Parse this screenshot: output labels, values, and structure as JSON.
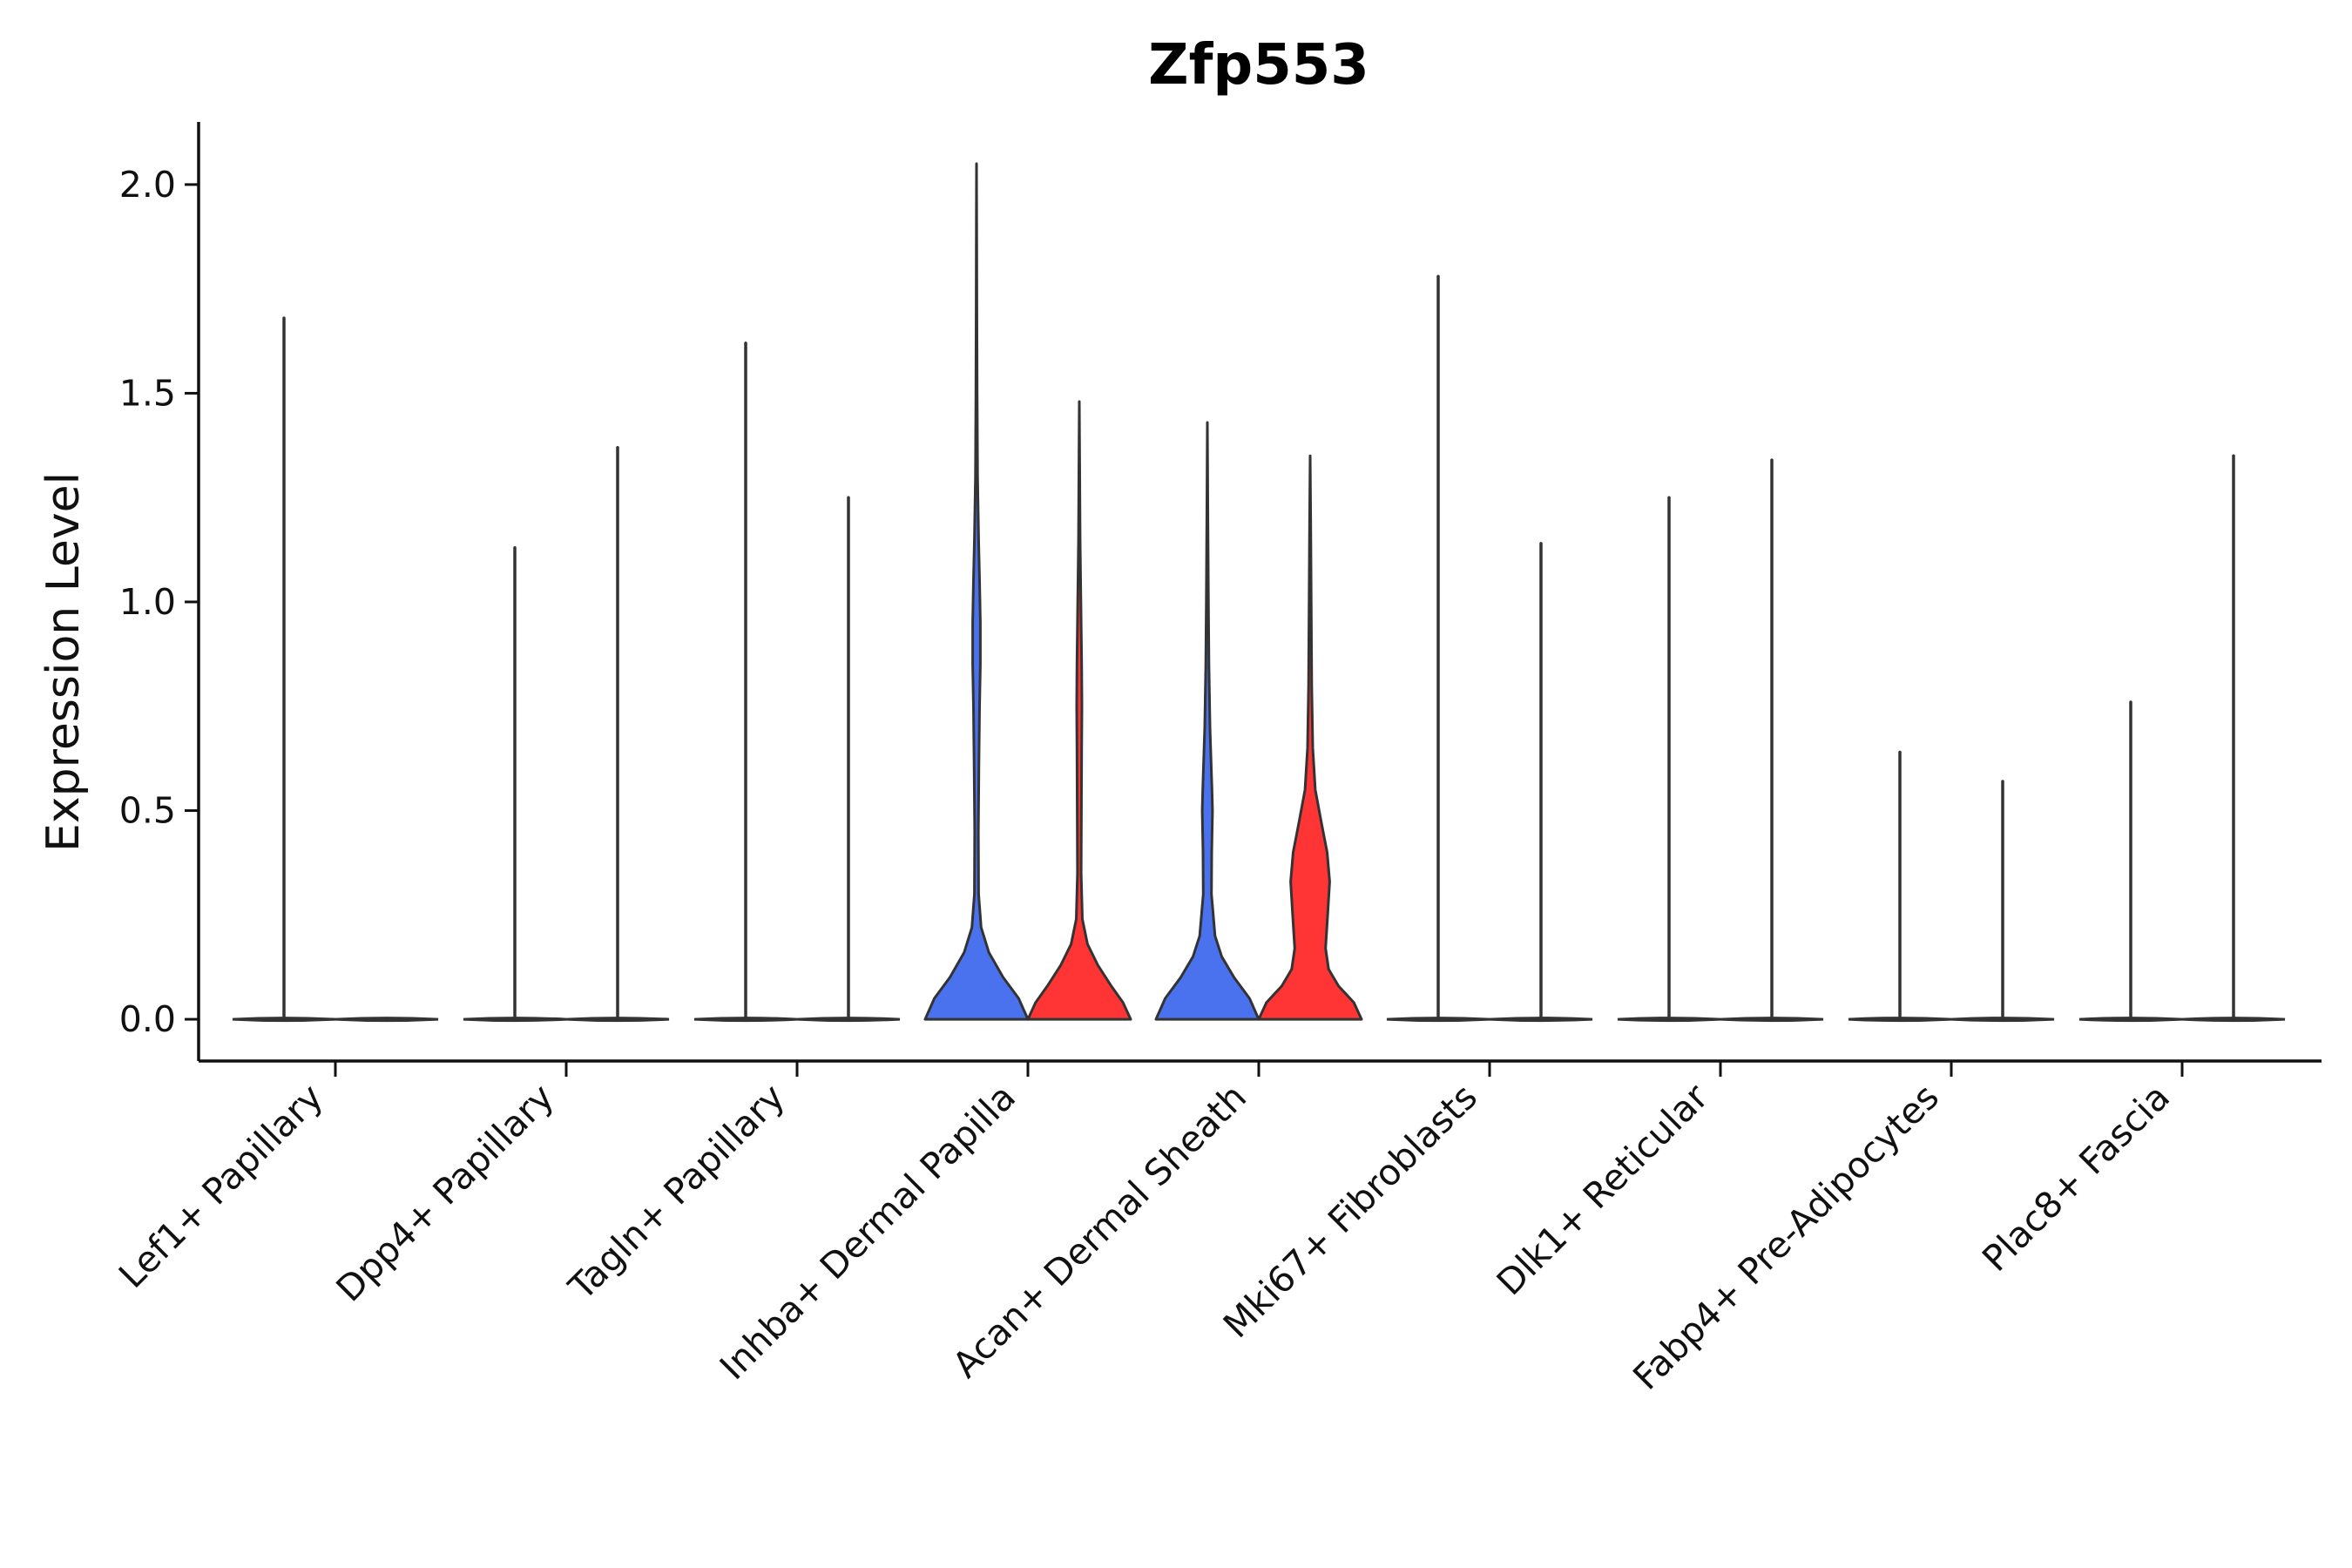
{
  "chart_data": {
    "type": "violin",
    "title": "Zfp553",
    "xlabel": "",
    "ylabel": "Expression Level",
    "ylim": [
      -0.1,
      2.15
    ],
    "yticks": [
      0.0,
      0.5,
      1.0,
      1.5,
      2.0
    ],
    "ytick_labels": [
      "0.0",
      "0.5",
      "1.0",
      "1.5",
      "2.0"
    ],
    "grid": false,
    "legend": "none",
    "colors": {
      "group_a": "#4a72ee",
      "group_b": "#ff3434",
      "outline": "#333333",
      "axis": "#111111"
    },
    "categories": [
      {
        "label": "Lef1+ Papillary",
        "violins": [
          {
            "group": "a",
            "max": 1.68,
            "density": [
              [
                0,
                1.0
              ],
              [
                0.02,
                0
              ]
            ]
          },
          {
            "group": "b",
            "max": 0.0,
            "density": [
              [
                0,
                1.0
              ],
              [
                0.02,
                0
              ]
            ]
          }
        ]
      },
      {
        "label": "Dpp4+ Papillary",
        "violins": [
          {
            "group": "a",
            "max": 1.13,
            "density": [
              [
                0,
                1.0
              ],
              [
                0.02,
                0
              ]
            ]
          },
          {
            "group": "b",
            "max": 1.37,
            "density": [
              [
                0,
                1.0
              ],
              [
                0.02,
                0
              ]
            ]
          }
        ]
      },
      {
        "label": "Tagln+ Papillary",
        "violins": [
          {
            "group": "a",
            "max": 1.62,
            "density": [
              [
                0,
                1.0
              ],
              [
                0.02,
                0
              ]
            ]
          },
          {
            "group": "b",
            "max": 1.25,
            "density": [
              [
                0,
                1.0
              ],
              [
                0.02,
                0
              ]
            ]
          }
        ]
      },
      {
        "label": "Inhba+ Dermal Papilla",
        "violins": [
          {
            "group": "a",
            "max": 2.05,
            "density": [
              [
                0,
                1.0
              ],
              [
                0.05,
                0.82
              ],
              [
                0.1,
                0.52
              ],
              [
                0.16,
                0.24
              ],
              [
                0.22,
                0.09
              ],
              [
                0.3,
                0.04
              ],
              [
                0.45,
                0.035
              ],
              [
                0.6,
                0.045
              ],
              [
                0.75,
                0.06
              ],
              [
                0.85,
                0.075
              ],
              [
                0.95,
                0.075
              ],
              [
                1.05,
                0.06
              ],
              [
                1.15,
                0.04
              ],
              [
                1.3,
                0.02
              ],
              [
                1.5,
                0.012
              ],
              [
                1.7,
                0.006
              ],
              [
                1.9,
                0.003
              ],
              [
                2.05,
                0
              ]
            ]
          },
          {
            "group": "b",
            "max": 1.48,
            "density": [
              [
                0,
                1.0
              ],
              [
                0.04,
                0.85
              ],
              [
                0.08,
                0.62
              ],
              [
                0.13,
                0.36
              ],
              [
                0.18,
                0.16
              ],
              [
                0.24,
                0.06
              ],
              [
                0.35,
                0.035
              ],
              [
                0.5,
                0.04
              ],
              [
                0.65,
                0.045
              ],
              [
                0.75,
                0.05
              ],
              [
                0.85,
                0.045
              ],
              [
                1.0,
                0.03
              ],
              [
                1.15,
                0.015
              ],
              [
                1.3,
                0.008
              ],
              [
                1.48,
                0
              ]
            ]
          }
        ]
      },
      {
        "label": "Acan+ Dermal Sheath",
        "violins": [
          {
            "group": "a",
            "max": 1.43,
            "density": [
              [
                0,
                1.0
              ],
              [
                0.05,
                0.82
              ],
              [
                0.1,
                0.52
              ],
              [
                0.15,
                0.28
              ],
              [
                0.2,
                0.15
              ],
              [
                0.3,
                0.08
              ],
              [
                0.4,
                0.085
              ],
              [
                0.5,
                0.1
              ],
              [
                0.55,
                0.09
              ],
              [
                0.7,
                0.05
              ],
              [
                0.85,
                0.03
              ],
              [
                1.0,
                0.02
              ],
              [
                1.2,
                0.01
              ],
              [
                1.43,
                0
              ]
            ]
          },
          {
            "group": "b",
            "max": 1.35,
            "density": [
              [
                0,
                1.0
              ],
              [
                0.04,
                0.85
              ],
              [
                0.08,
                0.55
              ],
              [
                0.12,
                0.36
              ],
              [
                0.17,
                0.3
              ],
              [
                0.25,
                0.34
              ],
              [
                0.33,
                0.38
              ],
              [
                0.4,
                0.33
              ],
              [
                0.47,
                0.22
              ],
              [
                0.55,
                0.1
              ],
              [
                0.65,
                0.05
              ],
              [
                0.8,
                0.03
              ],
              [
                1.0,
                0.02
              ],
              [
                1.2,
                0.01
              ],
              [
                1.35,
                0
              ]
            ]
          }
        ]
      },
      {
        "label": "Mki67+ Fibroblasts",
        "violins": [
          {
            "group": "a",
            "max": 1.78,
            "density": [
              [
                0,
                1.0
              ],
              [
                0.02,
                0
              ]
            ]
          },
          {
            "group": "b",
            "max": 1.14,
            "density": [
              [
                0,
                1.0
              ],
              [
                0.02,
                0
              ]
            ]
          }
        ]
      },
      {
        "label": "Dlk1+ Reticular",
        "violins": [
          {
            "group": "a",
            "max": 1.25,
            "density": [
              [
                0,
                1.0
              ],
              [
                0.02,
                0
              ]
            ]
          },
          {
            "group": "b",
            "max": 1.34,
            "density": [
              [
                0,
                1.0
              ],
              [
                0.02,
                0
              ]
            ]
          }
        ]
      },
      {
        "label": "Fabp4+ Pre-Adipocytes",
        "violins": [
          {
            "group": "a",
            "max": 0.64,
            "density": [
              [
                0,
                1.0
              ],
              [
                0.02,
                0
              ]
            ]
          },
          {
            "group": "b",
            "max": 0.57,
            "density": [
              [
                0,
                1.0
              ],
              [
                0.02,
                0
              ]
            ]
          }
        ]
      },
      {
        "label": "Plac8+ Fascia",
        "violins": [
          {
            "group": "a",
            "max": 0.76,
            "density": [
              [
                0,
                1.0
              ],
              [
                0.02,
                0
              ]
            ]
          },
          {
            "group": "b",
            "max": 1.35,
            "density": [
              [
                0,
                1.0
              ],
              [
                0.02,
                0
              ]
            ]
          }
        ]
      }
    ]
  }
}
